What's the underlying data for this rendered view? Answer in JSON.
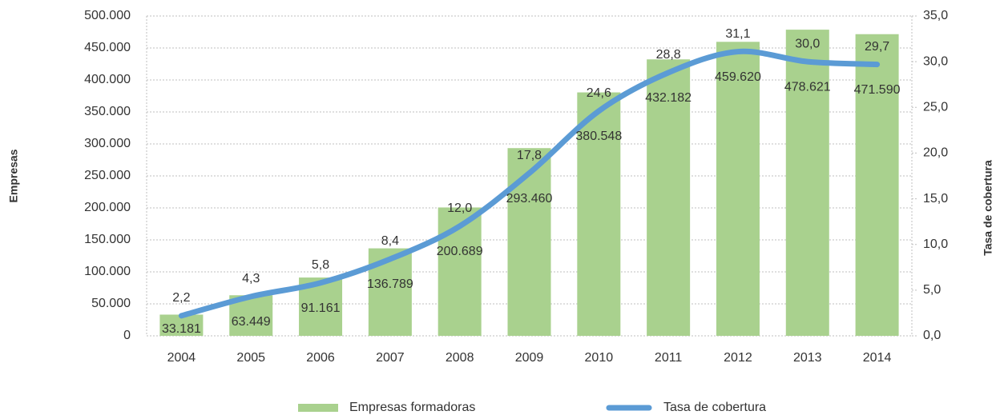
{
  "chart_data": {
    "type": "bar",
    "categories": [
      "2004",
      "2005",
      "2006",
      "2007",
      "2008",
      "2009",
      "2010",
      "2011",
      "2012",
      "2013",
      "2014"
    ],
    "series": [
      {
        "name": "Empresas formadoras",
        "color": "#a9d18e",
        "type": "bar",
        "values": [
          33181,
          63449,
          91161,
          136789,
          200689,
          293460,
          380548,
          432182,
          459620,
          478621,
          471590
        ],
        "value_labels": [
          "33.181",
          "63.449",
          "91.161",
          "136.789",
          "200.689",
          "293.460",
          "380.548",
          "432.182",
          "459.620",
          "478.621",
          "471.590"
        ]
      },
      {
        "name": "Tasa de cobertura",
        "color": "#5b9bd5",
        "type": "line",
        "axis": "y2",
        "values": [
          2.2,
          4.3,
          5.8,
          8.4,
          12.0,
          17.8,
          24.6,
          28.8,
          31.1,
          30.0,
          29.7
        ],
        "value_labels": [
          "2,2",
          "4,3",
          "5,8",
          "8,4",
          "12,0",
          "17,8",
          "24,6",
          "28,8",
          "31,1",
          "30,0",
          "29,7"
        ]
      }
    ],
    "ylabel": "Empresas",
    "y2label": "Tasa de cobertura",
    "ylim": [
      0,
      500000
    ],
    "yticks": [
      0,
      {
        "value": 50000,
        "label": "50.000"
      },
      {
        "value": 100000,
        "label": "100.000"
      },
      {
        "value": 150000,
        "label": "150.000"
      },
      {
        "value": 200000,
        "label": "200.000"
      },
      {
        "value": 250000,
        "label": "250.000"
      },
      {
        "value": 300000,
        "label": "300.000"
      },
      {
        "value": 350000,
        "label": "350.000"
      },
      {
        "value": 400000,
        "label": "400.000"
      },
      {
        "value": 450000,
        "label": "450.000"
      },
      {
        "value": 500000,
        "label": "500.000"
      }
    ],
    "y2lim": [
      0,
      35
    ],
    "y2ticks": [
      {
        "value": 0,
        "label": "0,0"
      },
      {
        "value": 5,
        "label": "5,0"
      },
      {
        "value": 10,
        "label": "10,0"
      },
      {
        "value": 15,
        "label": "15,0"
      },
      {
        "value": 20,
        "label": "20,0"
      },
      {
        "value": 25,
        "label": "25,0"
      },
      {
        "value": 30,
        "label": "30,0"
      },
      {
        "value": 35,
        "label": "35,0"
      }
    ],
    "grid": true,
    "legend": "bottom"
  }
}
